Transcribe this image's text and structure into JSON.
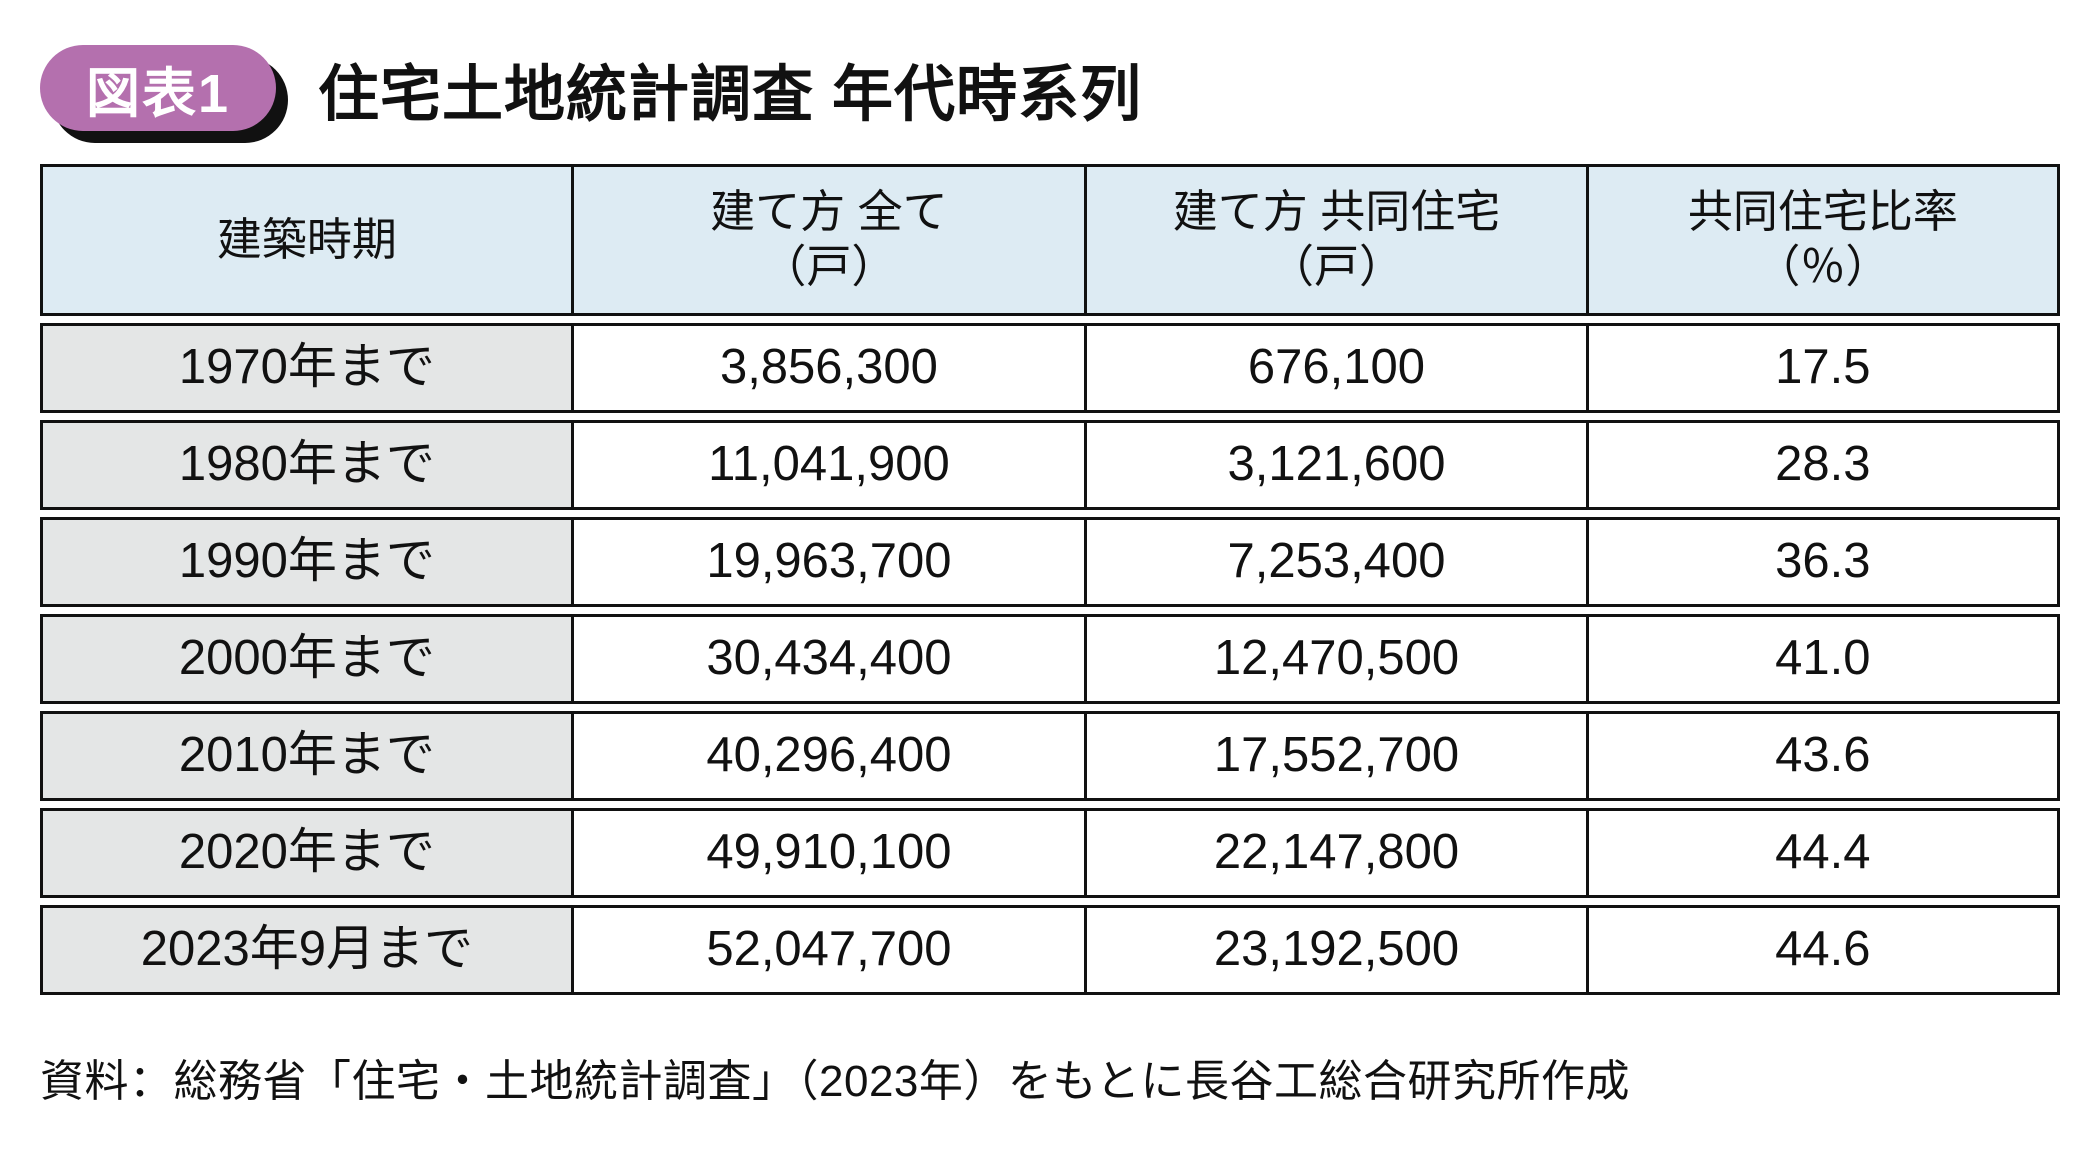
{
  "figure": {
    "badge_label": "図表1",
    "title": "住宅土地統計調査 年代時系列",
    "badge_color": "#b470ae",
    "header_bg": "#ddebf3",
    "row_label_bg": "#e4e6e6",
    "border_color": "#111111"
  },
  "table": {
    "columns": [
      {
        "line1": "建築時期",
        "line2": ""
      },
      {
        "line1": "建て方 全て",
        "line2": "（戸）"
      },
      {
        "line1": "建て方 共同住宅",
        "line2": "（戸）"
      },
      {
        "line1": "共同住宅比率",
        "line2": "（％）"
      }
    ],
    "rows": [
      {
        "period": "1970年まで",
        "all": "3,856,300",
        "coop": "676,100",
        "ratio": "17.5"
      },
      {
        "period": "1980年まで",
        "all": "11,041,900",
        "coop": "3,121,600",
        "ratio": "28.3"
      },
      {
        "period": "1990年まで",
        "all": "19,963,700",
        "coop": "7,253,400",
        "ratio": "36.3"
      },
      {
        "period": "2000年まで",
        "all": "30,434,400",
        "coop": "12,470,500",
        "ratio": "41.0"
      },
      {
        "period": "2010年まで",
        "all": "40,296,400",
        "coop": "17,552,700",
        "ratio": "43.6"
      },
      {
        "period": "2020年まで",
        "all": "49,910,100",
        "coop": "22,147,800",
        "ratio": "44.4"
      },
      {
        "period": "2023年9月まで",
        "all": "52,047,700",
        "coop": "23,192,500",
        "ratio": "44.6"
      }
    ]
  },
  "source_note": "資料：総務省「住宅・土地統計調査」（2023年）をもとに長谷工総合研究所作成",
  "chart_data": {
    "type": "table",
    "title": "住宅土地統計調査 年代時系列",
    "columns": [
      "建築時期",
      "建て方 全て（戸）",
      "建て方 共同住宅（戸）",
      "共同住宅比率（％）"
    ],
    "rows": [
      [
        "1970年まで",
        3856300,
        676100,
        17.5
      ],
      [
        "1980年まで",
        11041900,
        3121600,
        28.3
      ],
      [
        "1990年まで",
        19963700,
        7253400,
        36.3
      ],
      [
        "2000年まで",
        30434400,
        12470500,
        41.0
      ],
      [
        "2010年まで",
        40296400,
        17552700,
        43.6
      ],
      [
        "2020年まで",
        49910100,
        22147800,
        44.4
      ],
      [
        "2023年9月まで",
        52047700,
        23192500,
        44.6
      ]
    ],
    "source": "資料：総務省「住宅・土地統計調査」（2023年）をもとに長谷工総合研究所作成"
  }
}
